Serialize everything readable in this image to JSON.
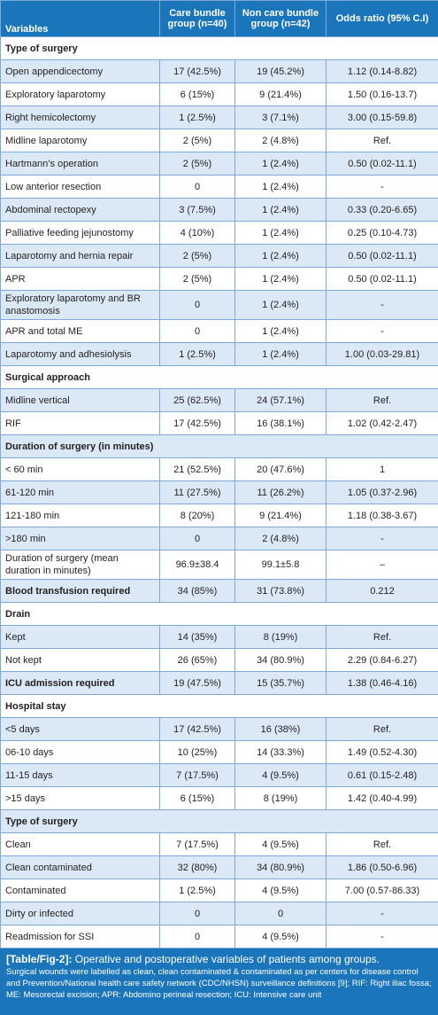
{
  "table": {
    "header": [
      "Variables",
      "Care bundle group (n=40)",
      "Non care bundle group (n=42)",
      "Odds ratio (95% C.I)"
    ],
    "rows": [
      [
        "Type of surgery"
      ],
      [
        "Open appendicectomy",
        "17 (42.5%)",
        "19 (45.2%)",
        "1.12 (0.14-8.82)"
      ],
      [
        "Exploratory laparotomy",
        "6 (15%)",
        "9 (21.4%)",
        "1.50 (0.16-13.7)"
      ],
      [
        "Right hemicolectomy",
        "1 (2.5%)",
        "3 (7.1%)",
        "3.00 (0.15-59.8)"
      ],
      [
        "Midline laparotomy",
        "2 (5%)",
        "2 (4.8%)",
        "Ref."
      ],
      [
        "Hartmann’s operation",
        "2 (5%)",
        "1 (2.4%)",
        "0.50 (0.02-11.1)"
      ],
      [
        "Low anterior resection",
        "0",
        "1 (2.4%)",
        "-"
      ],
      [
        "Abdominal rectopexy",
        "3 (7.5%)",
        "1 (2.4%)",
        "0.33 (0.20-6.65)"
      ],
      [
        "Palliative feeding jejunostomy",
        "4 (10%)",
        "1 (2.4%)",
        "0.25 (0.10-4.73)"
      ],
      [
        "Laparotomy and hernia repair",
        "2 (5%)",
        "1 (2.4%)",
        "0.50 (0.02-11.1)"
      ],
      [
        "APR",
        "2 (5%)",
        "1 (2.4%)",
        "0.50 (0.02-11.1)"
      ],
      [
        "Exploratory laparotomy and BR anastomosis",
        "0",
        "1 (2.4%)",
        "-"
      ],
      [
        "APR and total ME",
        "0",
        "1 (2.4%)",
        "-"
      ],
      [
        "Laparotomy and adhesiolysis",
        "1 (2.5%)",
        "1 (2.4%)",
        "1.00 (0.03-29.81)"
      ],
      [
        "Surgical approach"
      ],
      [
        "Midline vertical",
        "25 (62.5%)",
        "24 (57.1%)",
        "Ref."
      ],
      [
        "RIF",
        "17 (42.5%)",
        "16 (38.1%)",
        "1.02 (0.42-2.47)"
      ],
      [
        "Duration of surgery (in minutes)"
      ],
      [
        "< 60 min",
        "21 (52.5%)",
        "20 (47.6%)",
        "1"
      ],
      [
        "61-120 min",
        "11 (27.5%)",
        "11 (26.2%)",
        "1.05 (0.37-2.96)"
      ],
      [
        "121-180 min",
        "8 (20%)",
        "9 (21.4%)",
        "1.18 (0.38-3.67)"
      ],
      [
        ">180 min",
        "0",
        "2 (4.8%)",
        "-"
      ],
      [
        "Duration of surgery (mean duration in minutes)",
        "96.9±38.4",
        "99.1±5.8",
        "–"
      ],
      [
        "Blood transfusion required",
        "34 (85%)",
        "31 (73.8%)",
        "0.212"
      ],
      [
        "Drain"
      ],
      [
        "Kept",
        "14 (35%)",
        "8 (19%)",
        "Ref."
      ],
      [
        "Not kept",
        "26 (65%)",
        "34 (80.9%)",
        "2.29 (0.84-6.27)"
      ],
      [
        "ICU admission required",
        "19 (47.5%)",
        "15 (35.7%)",
        "1.38 (0.46-4.16)"
      ],
      [
        "Hospital stay"
      ],
      [
        "<5 days",
        "17 (42.5%)",
        "16 (38%)",
        "Ref."
      ],
      [
        "06-10 days",
        "10 (25%)",
        "14 (33.3%)",
        "1.49 (0.52-4.30)"
      ],
      [
        "11-15 days",
        "7 (17.5%)",
        "4 (9.5%)",
        "0.61 (0.15-2.48)"
      ],
      [
        ">15 days",
        "6 (15%)",
        "8 (19%)",
        "1.42 (0.40-4.99)"
      ],
      [
        "Type of surgery"
      ],
      [
        "Clean",
        "7 (17.5%)",
        "4 (9.5%)",
        "Ref."
      ],
      [
        "Clean contaminated",
        "32 (80%)",
        "34 (80.9%)",
        "1.86 (0.50-6.96)"
      ],
      [
        "Contaminated",
        "1 (2.5%)",
        "4 (9.5%)",
        "7.00 (0.57-86.33)"
      ],
      [
        "Dirty or infected",
        "0",
        "0",
        "-"
      ],
      [
        "Readmission for SSI",
        "0",
        "4 (9.5%)",
        "-"
      ]
    ]
  },
  "caption": {
    "label": "[Table/Fig-2]:",
    "title": "Operative and postoperative variables of patients among groups.",
    "note": "Surgical wounds were labelled as clean, clean contaminated & contaminated as per centers for disease control and Prevention/National health care safety network (CDC/NHSN) surveillance definitions [9]; RIF: Right iliac fossa; ME: Mesorectal excision; APR: Abdomino perineal resection; ICU: Intensive care unit"
  }
}
